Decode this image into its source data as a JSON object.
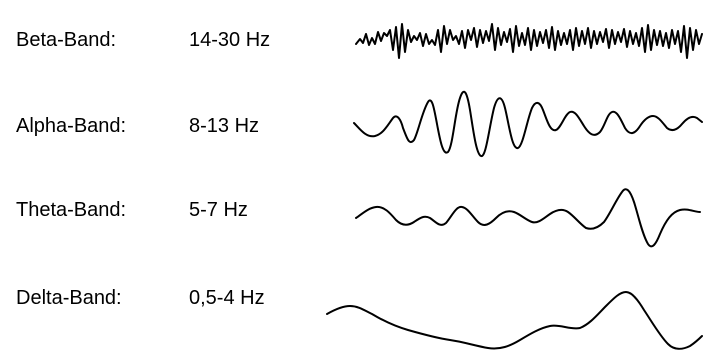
{
  "bands": [
    {
      "name": "Beta-Band:",
      "range": "14-30 Hz"
    },
    {
      "name": "Alpha-Band:",
      "range": "8-13 Hz"
    },
    {
      "name": "Theta-Band:",
      "range": "5-7 Hz"
    },
    {
      "name": "Delta-Band:",
      "range": "0,5-4 Hz"
    }
  ],
  "colors": {
    "text": "#000000",
    "wave": "#000000",
    "background": "#ffffff"
  }
}
